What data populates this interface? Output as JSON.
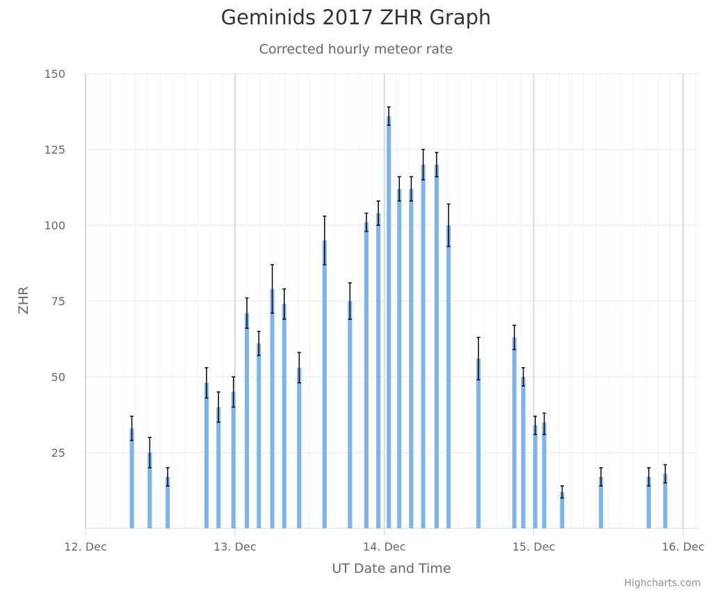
{
  "title": "Geminids 2017 ZHR Graph",
  "subtitle": "Corrected hourly meteor rate",
  "credits": "Highcharts.com",
  "colors": {
    "bar": "#7cb5ec",
    "error_bar": "#000000",
    "grid": "#e6e6e6",
    "major_grid": "#d9d9d9",
    "axis": "#ccd6eb"
  },
  "chart_data": {
    "type": "bar",
    "title": "Geminids 2017 ZHR Graph",
    "subtitle": "Corrected hourly meteor rate",
    "xlabel": "UT Date and Time",
    "ylabel": "ZHR",
    "x_unit": "days (December 2017, UT)",
    "xlim": [
      12,
      16.1
    ],
    "ylim": [
      0,
      150
    ],
    "yticks": [
      25,
      50,
      75,
      100,
      125,
      150
    ],
    "xticks": [
      {
        "value": 12,
        "label": "12. Dec"
      },
      {
        "value": 13,
        "label": "13. Dec"
      },
      {
        "value": 14,
        "label": "14. Dec"
      },
      {
        "value": 15,
        "label": "15. Dec"
      },
      {
        "value": 16,
        "label": "16. Dec"
      }
    ],
    "grid": true,
    "series": [
      {
        "points": [
          {
            "x": 12.31,
            "y": 33,
            "low": 29,
            "high": 37
          },
          {
            "x": 12.43,
            "y": 25,
            "low": 20,
            "high": 30
          },
          {
            "x": 12.55,
            "y": 17,
            "low": 14,
            "high": 20
          },
          {
            "x": 12.81,
            "y": 48,
            "low": 43,
            "high": 53
          },
          {
            "x": 12.89,
            "y": 40,
            "low": 35,
            "high": 45
          },
          {
            "x": 12.99,
            "y": 45,
            "low": 40,
            "high": 50
          },
          {
            "x": 13.08,
            "y": 71,
            "low": 66,
            "high": 76
          },
          {
            "x": 13.16,
            "y": 61,
            "low": 57,
            "high": 65
          },
          {
            "x": 13.25,
            "y": 79,
            "low": 71,
            "high": 87
          },
          {
            "x": 13.33,
            "y": 74,
            "low": 69,
            "high": 79
          },
          {
            "x": 13.43,
            "y": 53,
            "low": 48,
            "high": 58
          },
          {
            "x": 13.6,
            "y": 95,
            "low": 87,
            "high": 103
          },
          {
            "x": 13.77,
            "y": 75,
            "low": 69,
            "high": 81
          },
          {
            "x": 13.88,
            "y": 101,
            "low": 98,
            "high": 104
          },
          {
            "x": 13.96,
            "y": 104,
            "low": 100,
            "high": 108
          },
          {
            "x": 14.03,
            "y": 136,
            "low": 133,
            "high": 139
          },
          {
            "x": 14.1,
            "y": 112,
            "low": 108,
            "high": 116
          },
          {
            "x": 14.18,
            "y": 112,
            "low": 108,
            "high": 116
          },
          {
            "x": 14.26,
            "y": 120,
            "low": 115,
            "high": 125
          },
          {
            "x": 14.35,
            "y": 120,
            "low": 116,
            "high": 124
          },
          {
            "x": 14.43,
            "y": 100,
            "low": 93,
            "high": 107
          },
          {
            "x": 14.63,
            "y": 56,
            "low": 49,
            "high": 63
          },
          {
            "x": 14.87,
            "y": 63,
            "low": 59,
            "high": 67
          },
          {
            "x": 14.93,
            "y": 50,
            "low": 47,
            "high": 53
          },
          {
            "x": 15.01,
            "y": 34,
            "low": 31,
            "high": 37
          },
          {
            "x": 15.07,
            "y": 35,
            "low": 31,
            "high": 38
          },
          {
            "x": 15.19,
            "y": 12,
            "low": 10,
            "high": 14
          },
          {
            "x": 15.45,
            "y": 17,
            "low": 14,
            "high": 20
          },
          {
            "x": 15.77,
            "y": 17,
            "low": 14,
            "high": 20
          },
          {
            "x": 15.88,
            "y": 18,
            "low": 15,
            "high": 21
          }
        ]
      }
    ]
  }
}
